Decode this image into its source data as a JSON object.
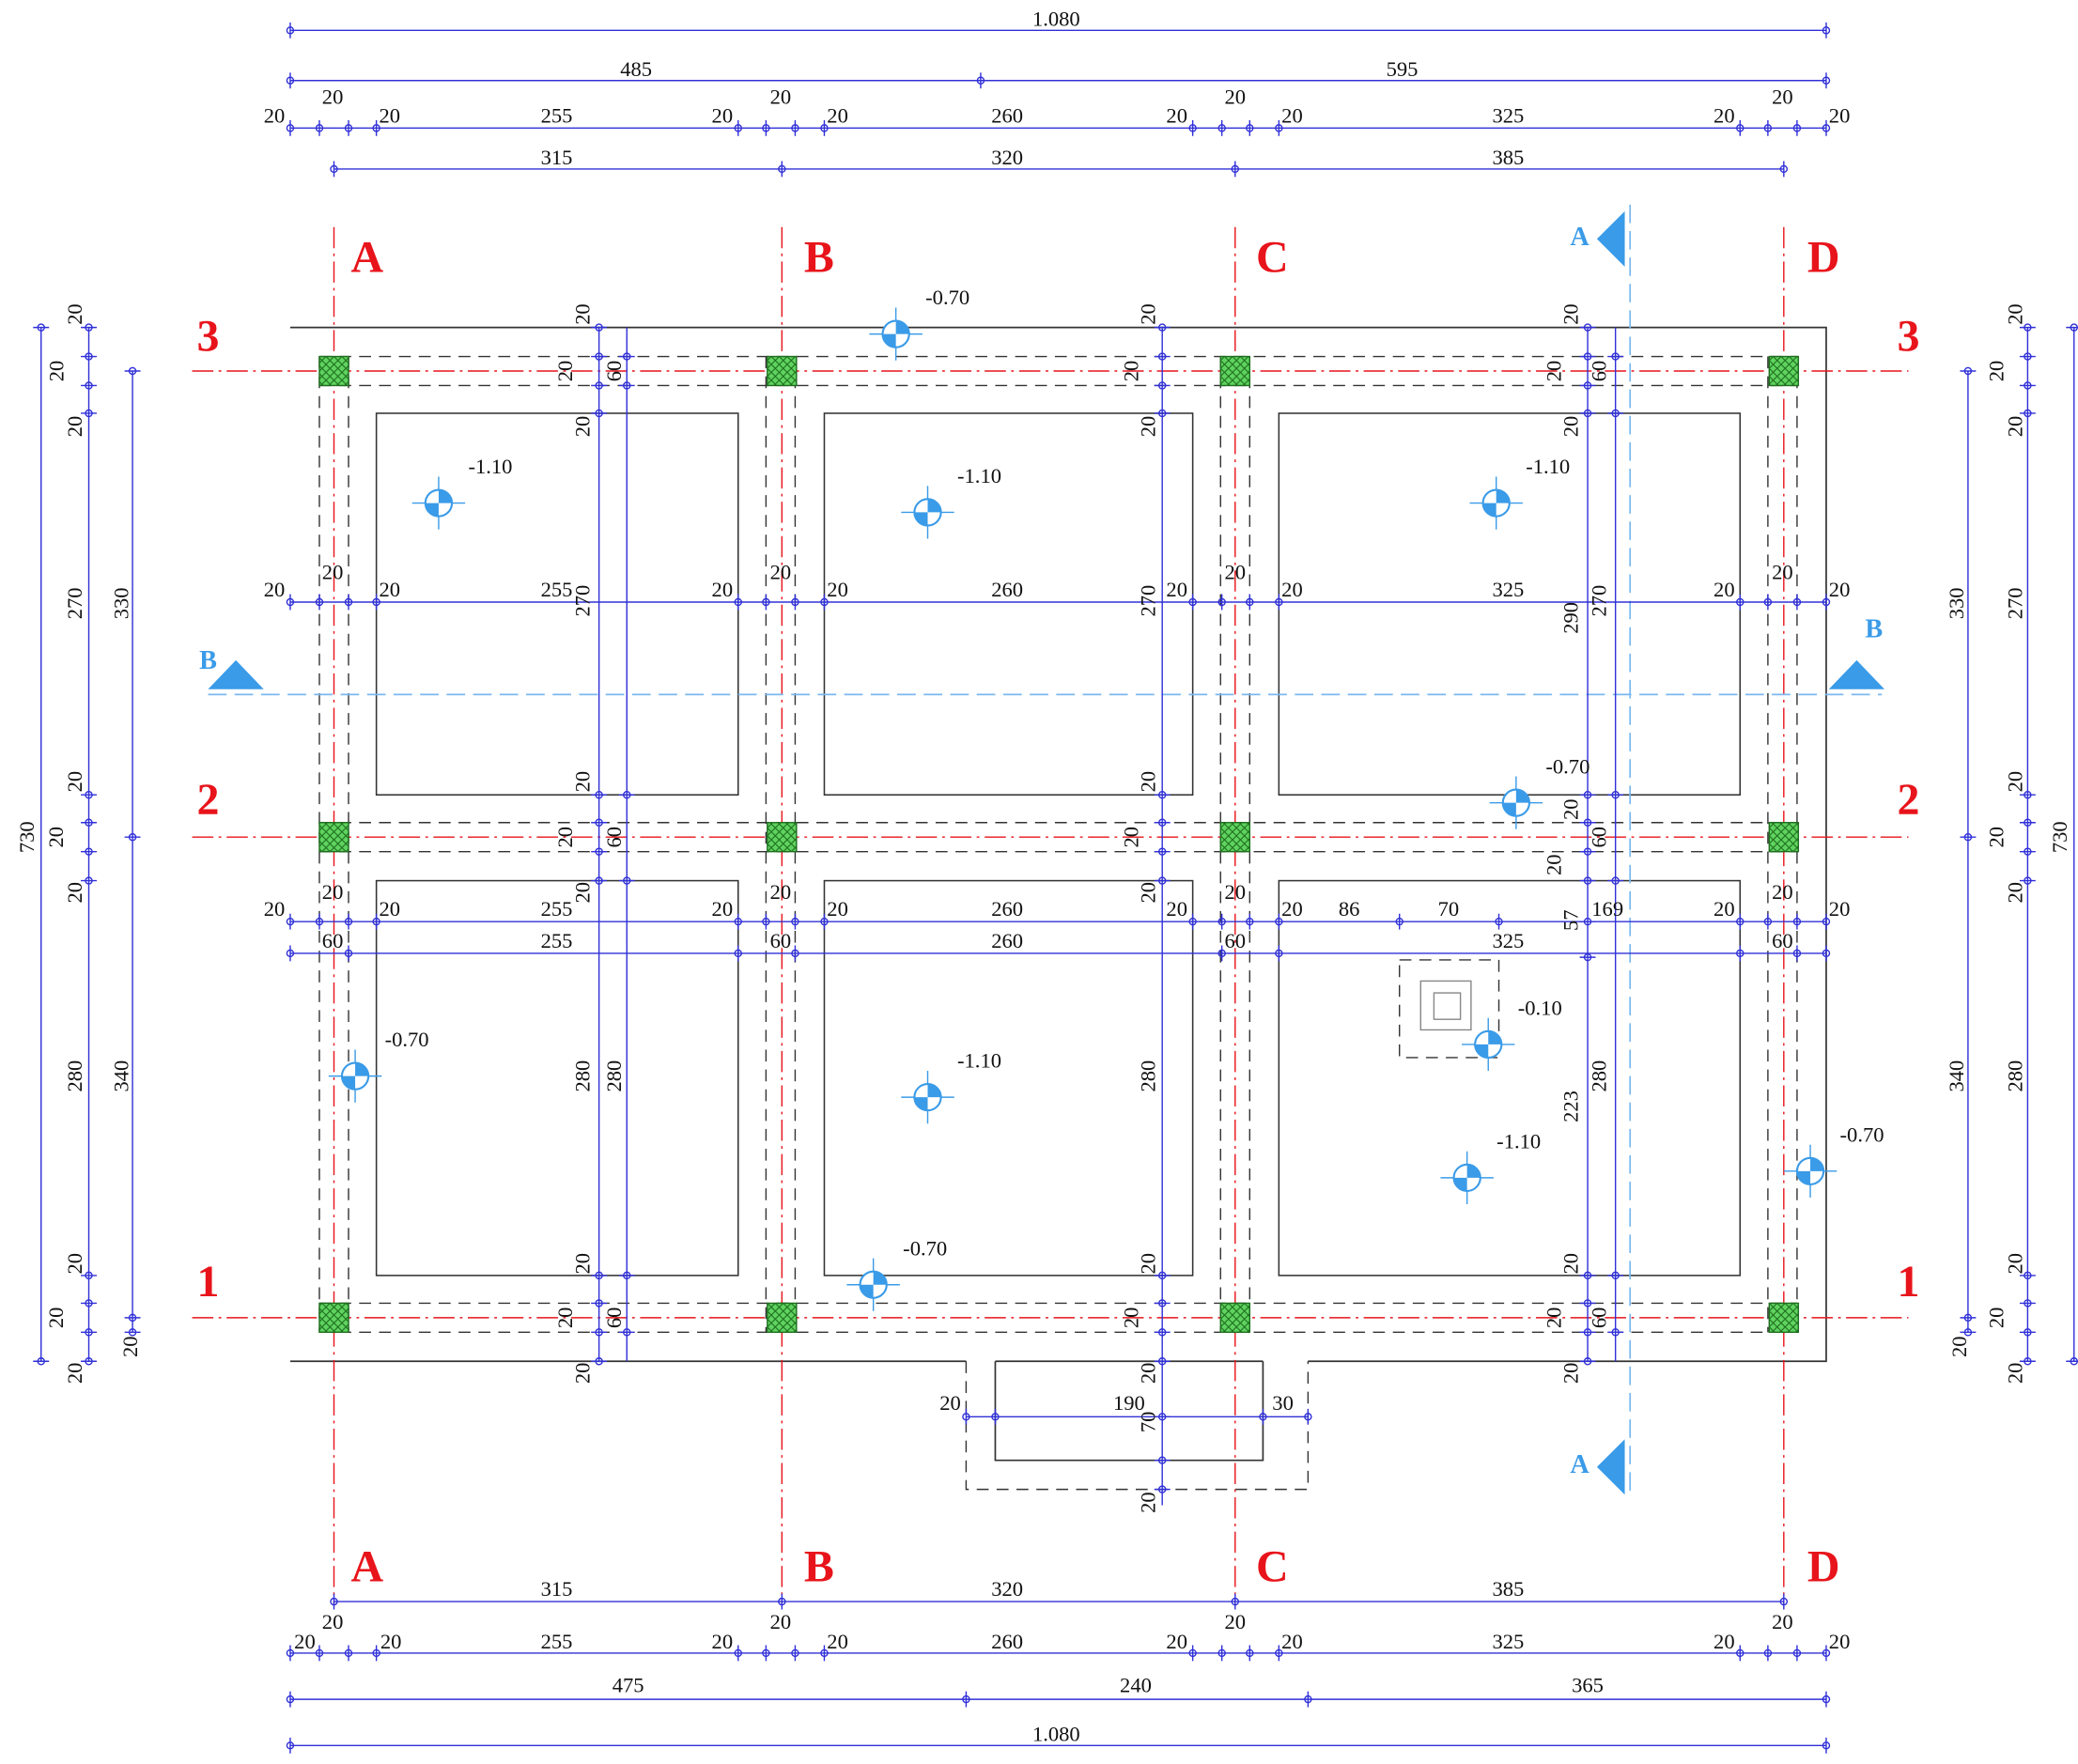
{
  "grid": {
    "columns_top": [
      "A",
      "B",
      "C",
      "D"
    ],
    "columns_bottom": [
      "A",
      "B",
      "C",
      "D"
    ],
    "rows_left": [
      "3",
      "2",
      "1"
    ],
    "rows_right": [
      "3",
      "2",
      "1"
    ]
  },
  "sections": [
    "A",
    "A",
    "B",
    "B"
  ],
  "levels": [
    "-0.70",
    "-1.10",
    "-1.10",
    "-1.10",
    "-0.70",
    "-0.10",
    "-0.70",
    "-1.10",
    "-1.10",
    "-0.70",
    "-0.70"
  ],
  "dimensions": {
    "top": [
      "1.080",
      "485",
      "595",
      "20",
      "20",
      "20",
      "255",
      "20",
      "20",
      "20",
      "260",
      "20",
      "20",
      "20",
      "325",
      "20",
      "20",
      "20",
      "315",
      "320",
      "385"
    ],
    "bottom": [
      "315",
      "320",
      "385",
      "20",
      "20",
      "20",
      "20",
      "20",
      "20",
      "255",
      "20",
      "20",
      "260",
      "20",
      "20",
      "325",
      "20",
      "20",
      "475",
      "240",
      "365",
      "1.080"
    ],
    "left": [
      "730",
      "20",
      "20",
      "20",
      "270",
      "330",
      "20",
      "20",
      "20",
      "280",
      "340",
      "20",
      "20",
      "20",
      "20"
    ],
    "right": [
      "20",
      "20",
      "20",
      "330",
      "270",
      "20",
      "20",
      "20",
      "340",
      "280",
      "20",
      "20",
      "20",
      "20",
      "730"
    ],
    "interior": [
      "20",
      "20",
      "60",
      "20",
      "20",
      "20",
      "20",
      "20",
      "20",
      "60",
      "20",
      "20",
      "20",
      "20",
      "255",
      "270",
      "20",
      "20",
      "20",
      "260",
      "270",
      "20",
      "20",
      "20",
      "325",
      "290",
      "270",
      "20",
      "20",
      "20",
      "20",
      "20",
      "60",
      "20",
      "20",
      "20",
      "20",
      "20",
      "60",
      "20",
      "20",
      "20",
      "20",
      "255",
      "20",
      "20",
      "20",
      "260",
      "20",
      "20",
      "20",
      "86",
      "70",
      "57",
      "169",
      "20",
      "20",
      "20",
      "60",
      "255",
      "60",
      "260",
      "60",
      "325",
      "60",
      "280",
      "280",
      "280",
      "223",
      "280",
      "20",
      "20",
      "60",
      "20",
      "20",
      "20",
      "20",
      "20",
      "20",
      "60",
      "20",
      "20",
      "190",
      "30",
      "70",
      "20"
    ]
  }
}
